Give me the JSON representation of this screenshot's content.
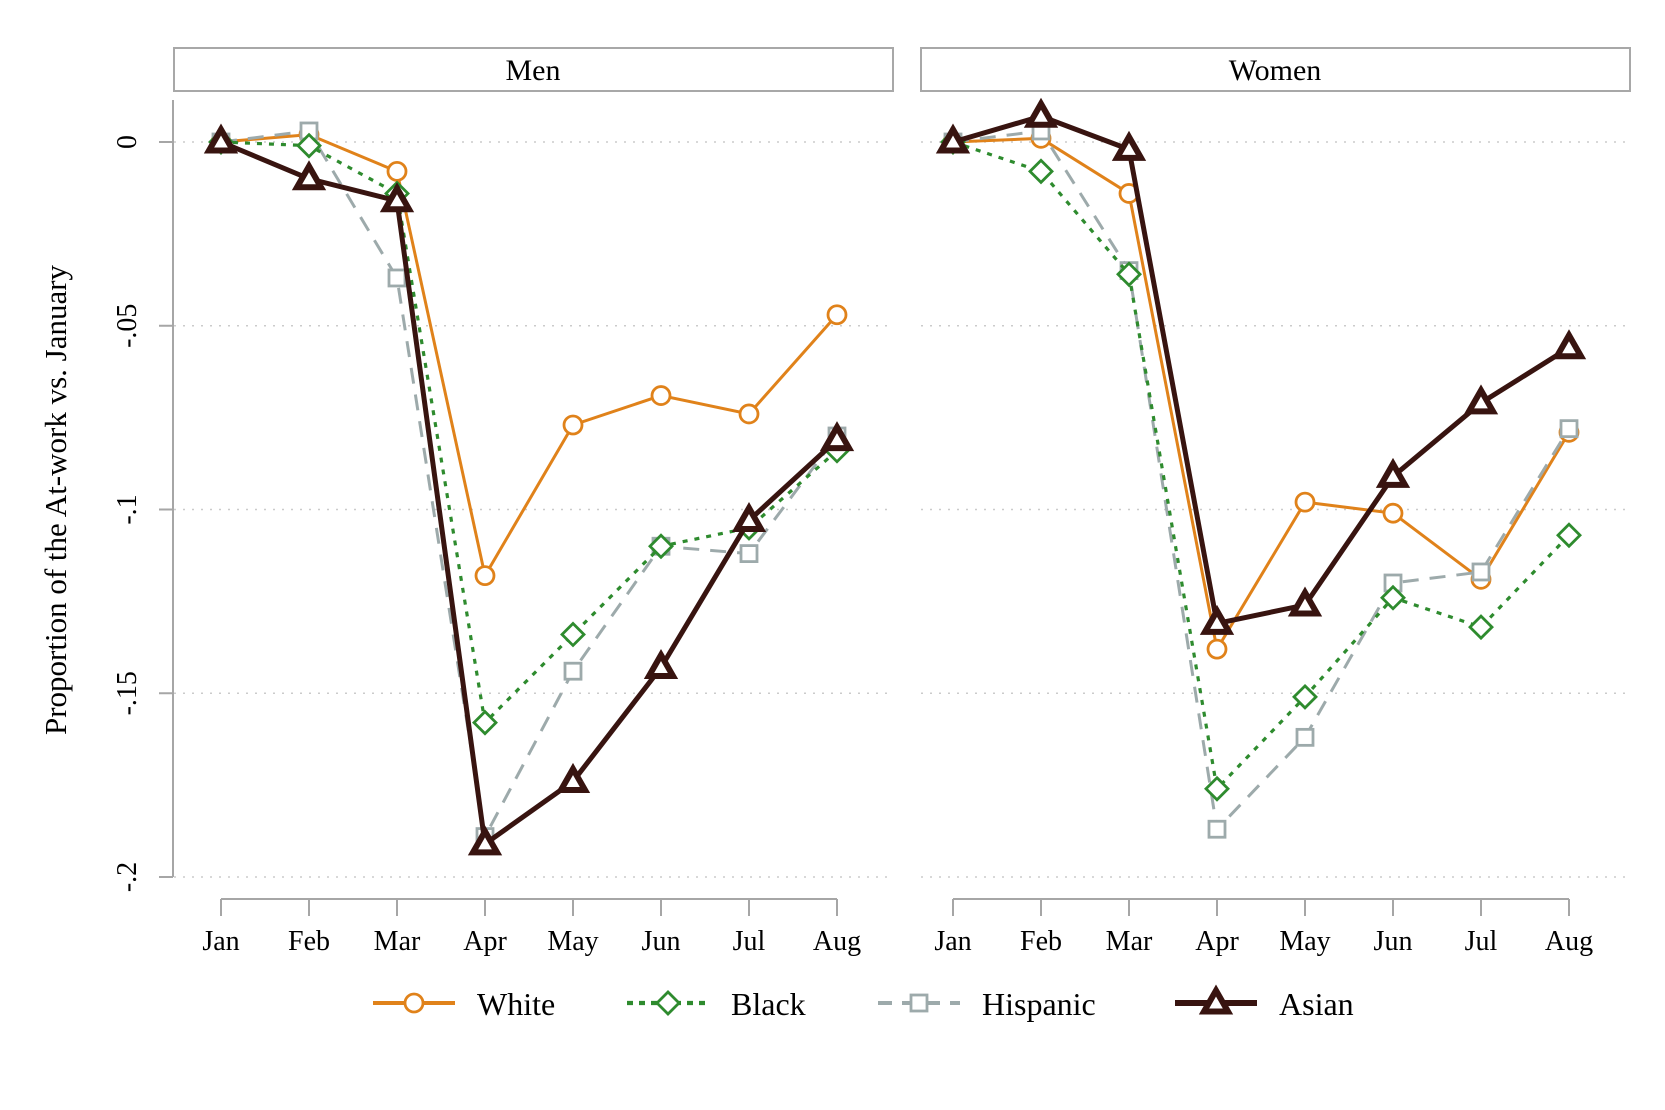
{
  "chart_data": {
    "type": "line",
    "facets": [
      "Men",
      "Women"
    ],
    "x_categories": [
      "Jan",
      "Feb",
      "Mar",
      "Apr",
      "May",
      "Jun",
      "Jul",
      "Aug"
    ],
    "ylabel": "Proportion of the At-work vs. January",
    "y_tick_labels": [
      "0",
      "-.05",
      "-.1",
      "-.15",
      "-.2"
    ],
    "y_tick_values": [
      0,
      -0.05,
      -0.1,
      -0.15,
      -0.2
    ],
    "ylim": [
      -0.2,
      0.01
    ],
    "grid": "horizontal-dotted",
    "legend_position": "bottom",
    "panels": [
      {
        "title": "Men"
      },
      {
        "title": "Women"
      }
    ],
    "series": [
      {
        "name": "White",
        "color": "#E0821A",
        "line": "solid",
        "marker": "circle",
        "men": [
          0,
          0.002,
          -0.008,
          -0.118,
          -0.077,
          -0.069,
          -0.074,
          -0.047
        ],
        "women": [
          0,
          0.001,
          -0.014,
          -0.138,
          -0.098,
          -0.101,
          -0.119,
          -0.079
        ]
      },
      {
        "name": "Black",
        "color": "#2E8B2E",
        "line": "dotted",
        "marker": "diamond",
        "men": [
          0,
          -0.001,
          -0.014,
          -0.158,
          -0.134,
          -0.11,
          -0.105,
          -0.084
        ],
        "women": [
          0,
          -0.008,
          -0.036,
          -0.176,
          -0.151,
          -0.124,
          -0.132,
          -0.107
        ]
      },
      {
        "name": "Hispanic",
        "color": "#9DAAAB",
        "line": "dashed",
        "marker": "square",
        "men": [
          0,
          0.003,
          -0.037,
          -0.189,
          -0.144,
          -0.11,
          -0.112,
          -0.08
        ],
        "women": [
          0,
          0.003,
          -0.035,
          -0.187,
          -0.162,
          -0.12,
          -0.117,
          -0.078
        ]
      },
      {
        "name": "Asian",
        "color": "#381410",
        "line": "solid-thick",
        "marker": "triangle",
        "men": [
          0,
          -0.01,
          -0.016,
          -0.191,
          -0.174,
          -0.143,
          -0.103,
          -0.081
        ],
        "women": [
          0,
          0.007,
          -0.002,
          -0.131,
          -0.126,
          -0.091,
          -0.071,
          -0.056
        ]
      }
    ]
  },
  "colors": {
    "background": "#FFFFFF",
    "grid": "#CBCBCB",
    "axis": "#A6A6A6",
    "panel_border": "#A8A8A8",
    "text": "#000000"
  }
}
